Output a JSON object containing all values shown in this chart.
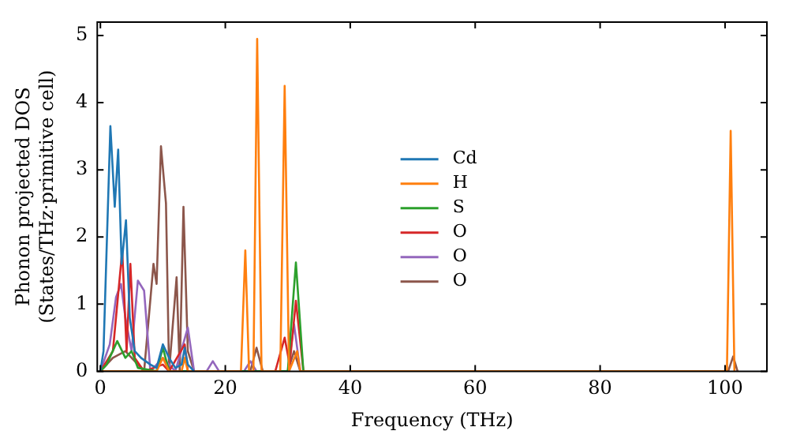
{
  "chart_data": {
    "type": "line",
    "xlabel": "Frequency (THz)",
    "ylabel": "Phonon projected DOS\n(States/THz·primitive cell)",
    "xlim": [
      -0.5,
      106.7
    ],
    "ylim": [
      0,
      5.2
    ],
    "xticks": [
      0,
      20,
      40,
      60,
      80,
      100
    ],
    "yticks": [
      0,
      1,
      2,
      3,
      4,
      5
    ],
    "grid": false,
    "legend": "center",
    "marker": "none",
    "line_style": "solid",
    "series": [
      {
        "name": "Cd",
        "color": "#1f77b4",
        "x": [
          0,
          0.5,
          1.6,
          2.3,
          2.85,
          3.4,
          4.1,
          4.7,
          5.5,
          6.5,
          8,
          9,
          10,
          11,
          12,
          13,
          13.5,
          14,
          15
        ],
        "values": [
          0,
          0.3,
          3.65,
          2.45,
          3.3,
          1.6,
          2.25,
          0.8,
          0.3,
          0.2,
          0.1,
          0.05,
          0.4,
          0.2,
          0.05,
          0.1,
          0.35,
          0.1,
          0
        ]
      },
      {
        "name": "H",
        "color": "#ff7f0e",
        "x": [
          0,
          9,
          10,
          11,
          13,
          13.5,
          14,
          22.5,
          23.2,
          23.8,
          24.5,
          25.1,
          25.8,
          28.8,
          29.5,
          30.2,
          31.5,
          32,
          100.3,
          100.9,
          101.5
        ],
        "values": [
          0,
          0,
          0.2,
          0,
          0,
          0.2,
          0,
          0,
          1.8,
          0,
          0,
          4.95,
          0,
          0,
          4.25,
          0,
          0.3,
          0,
          0,
          3.58,
          0
        ]
      },
      {
        "name": "S",
        "color": "#2ca02c",
        "x": [
          0,
          1,
          2.7,
          4,
          5,
          6,
          9,
          10,
          11,
          14,
          30,
          31.3,
          32.5
        ],
        "values": [
          0,
          0.1,
          0.45,
          0.2,
          0.3,
          0.05,
          0,
          0.35,
          0,
          0,
          0,
          1.62,
          0
        ]
      },
      {
        "name": "O",
        "color": "#d62728",
        "x": [
          0,
          2,
          3.5,
          4.2,
          4.8,
          5.5,
          7,
          10,
          11,
          13.5,
          14,
          28,
          29.5,
          30.3,
          31.3,
          32.5
        ],
        "values": [
          0,
          0.3,
          1.8,
          0.3,
          1.6,
          0.2,
          0,
          0.1,
          0,
          0.4,
          0,
          0,
          0.5,
          0.1,
          1.05,
          0
        ]
      },
      {
        "name": "O",
        "color": "#9467bd",
        "x": [
          0,
          1.5,
          2.5,
          3.3,
          4,
          5,
          6,
          7,
          8,
          10,
          12,
          14,
          15,
          17,
          18,
          19,
          23,
          24,
          25,
          30,
          31,
          32
        ],
        "values": [
          0,
          0.4,
          1.1,
          1.3,
          0.8,
          0.3,
          1.35,
          1.2,
          0,
          0.2,
          0,
          0.65,
          0,
          0,
          0.15,
          0,
          0,
          0.15,
          0,
          0,
          0.7,
          0
        ]
      },
      {
        "name": "O",
        "color": "#8c564b",
        "x": [
          0,
          2,
          4,
          6,
          7,
          8.5,
          9,
          9.7,
          10.5,
          11,
          12.2,
          12.7,
          13.3,
          14,
          15,
          24,
          25,
          26,
          30,
          31,
          32,
          100.5,
          101.3,
          102
        ],
        "values": [
          0,
          0.2,
          0.3,
          0.1,
          0,
          1.6,
          1.3,
          3.35,
          2.5,
          0,
          1.4,
          0,
          2.45,
          0.3,
          0,
          0,
          0.35,
          0,
          0,
          0.3,
          0,
          0,
          0.22,
          0
        ]
      }
    ]
  }
}
